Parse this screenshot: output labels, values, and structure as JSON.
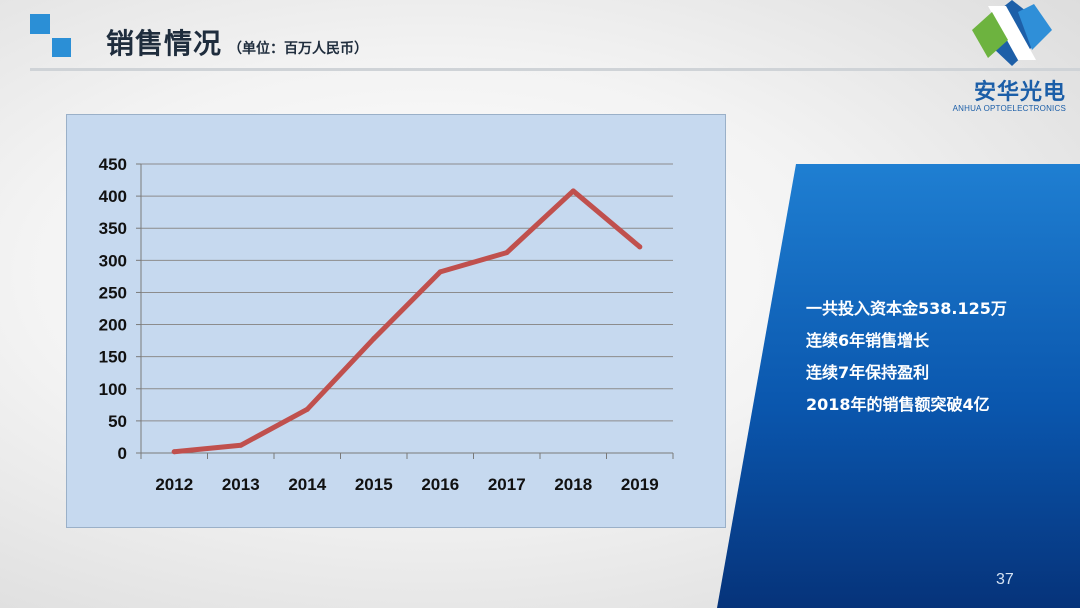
{
  "header": {
    "title": "销售情况",
    "subtitle": "（单位：百万人民币）",
    "accent_color": "#2b8fd6"
  },
  "logo": {
    "name_cn": "安华光电",
    "name_en": "ANHUA OPTOELECTRONICS"
  },
  "chart_data": {
    "type": "line",
    "categories": [
      "2012",
      "2013",
      "2014",
      "2015",
      "2016",
      "2017",
      "2018",
      "2019"
    ],
    "values": [
      2,
      12,
      68,
      178,
      282,
      312,
      408,
      321
    ],
    "y_ticks": [
      "0",
      "50",
      "100",
      "150",
      "200",
      "250",
      "300",
      "350",
      "400",
      "450"
    ],
    "ylim": [
      0,
      450
    ],
    "grid": true,
    "line_color": "#c0504d",
    "background": "#c6d9ef"
  },
  "highlights": [
    "一共投入资本金538.125万",
    "连续6年销售增长",
    "连续7年保持盈利",
    "2018年的销售额突破4亿"
  ],
  "page_number": "37"
}
